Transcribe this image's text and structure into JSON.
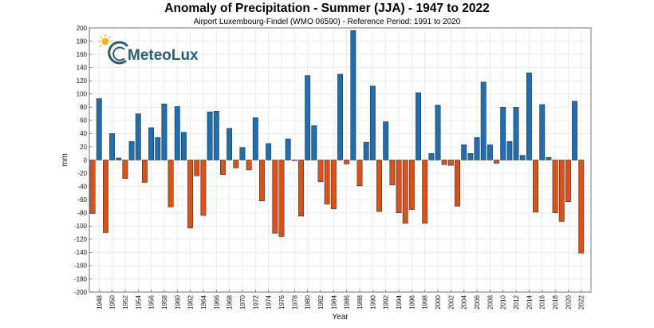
{
  "chart_data": {
    "type": "bar",
    "title": "Anomaly of Precipitation - Summer (JJA) - 1947 to 2022",
    "subtitle": "Airport Luxembourg-Findel (WMO 06590) - Reference Period: 1991 to 2020",
    "xlabel": "Year",
    "ylabel": "mm",
    "ylim": [
      -200,
      200
    ],
    "ytick_step": 20,
    "xtick_labels": [
      "1948",
      "1950",
      "1952",
      "1954",
      "1956",
      "1958",
      "1960",
      "1962",
      "1964",
      "1966",
      "1968",
      "1970",
      "1972",
      "1974",
      "1976",
      "1978",
      "1980",
      "1982",
      "1984",
      "1986",
      "1988",
      "1990",
      "1992",
      "1994",
      "1996",
      "1998",
      "2000",
      "2002",
      "2004",
      "2006",
      "2008",
      "2010",
      "2012",
      "2014",
      "2016",
      "2018",
      "2020",
      "2022"
    ],
    "grid": true,
    "colors": {
      "positive": "#1f6fb0",
      "negative": "#d95319"
    },
    "x": [
      1947,
      1948,
      1949,
      1950,
      1951,
      1952,
      1953,
      1954,
      1955,
      1956,
      1957,
      1958,
      1959,
      1960,
      1961,
      1962,
      1963,
      1964,
      1965,
      1966,
      1967,
      1968,
      1969,
      1970,
      1971,
      1972,
      1973,
      1974,
      1975,
      1976,
      1977,
      1978,
      1979,
      1980,
      1981,
      1982,
      1983,
      1984,
      1985,
      1986,
      1987,
      1988,
      1989,
      1990,
      1991,
      1992,
      1993,
      1994,
      1995,
      1996,
      1997,
      1998,
      1999,
      2000,
      2001,
      2002,
      2003,
      2004,
      2005,
      2006,
      2007,
      2008,
      2009,
      2010,
      2011,
      2012,
      2013,
      2014,
      2015,
      2016,
      2017,
      2018,
      2019,
      2020,
      2021,
      2022
    ],
    "values": [
      -81,
      93,
      -110,
      40,
      3,
      -28,
      28,
      70,
      -34,
      49,
      34,
      85,
      -71,
      81,
      42,
      -103,
      -24,
      -84,
      73,
      74,
      -22,
      48,
      -12,
      19,
      -15,
      64,
      -62,
      25,
      -111,
      -116,
      32,
      -1,
      -85,
      128,
      52,
      -33,
      -67,
      -74,
      130,
      -6,
      196,
      -39,
      27,
      112,
      -78,
      58,
      -38,
      -80,
      -96,
      -75,
      102,
      -96,
      10,
      83,
      -7,
      -8,
      -70,
      23,
      10,
      34,
      118,
      23,
      -5,
      80,
      28,
      80,
      7,
      132,
      -79,
      84,
      4,
      -80,
      -93,
      -63,
      89,
      -141
    ]
  },
  "logo": {
    "text": "MeteoLux"
  }
}
